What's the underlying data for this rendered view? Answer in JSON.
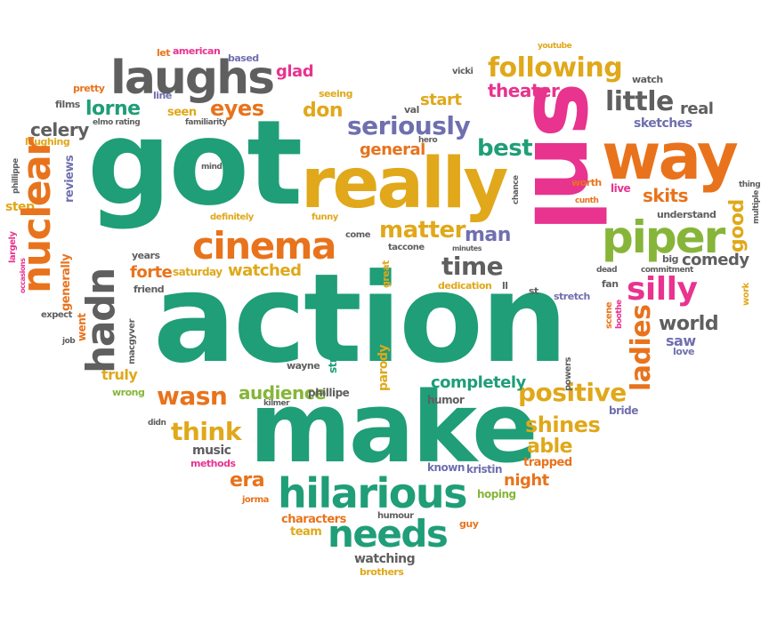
{
  "colors": {
    "green": "#1f9e78",
    "orange": "#e8731c",
    "pink": "#e8338f",
    "gold": "#e0a81a",
    "gray": "#5f5f5f",
    "purple": "#6f6fb0",
    "lime": "#86b53a"
  },
  "words": {
    "action": "action",
    "got": "got",
    "make": "make",
    "snl": "snl",
    "really": "really",
    "way": "way",
    "laughs": "laughs",
    "cinema": "cinema",
    "piper": "piper",
    "hilarious": "hilarious",
    "nuclear": "nuclear",
    "following": "following",
    "hadn": "hadn",
    "needs": "needs",
    "seriously": "seriously",
    "silly": "silly",
    "little": "little",
    "positive": "positive",
    "ladies": "ladies",
    "theater": "theater",
    "lorne": "lorne",
    "eyes": "eyes",
    "celery": "celery",
    "don": "don",
    "best": "best",
    "matter": "matter",
    "time": "time",
    "wasn": "wasn",
    "think": "think",
    "shines": "shines",
    "able": "able",
    "man": "man",
    "world": "world",
    "good": "good",
    "skits": "skits",
    "comedy": "comedy",
    "watched": "watched",
    "forte": "forte",
    "era": "era",
    "night": "night",
    "completely": "completely",
    "audience": "audience",
    "parody": "parody",
    "watching": "watching",
    "real": "real",
    "general": "general",
    "start": "start",
    "glad": "glad",
    "saw": "saw",
    "sketches": "sketches",
    "went": "went",
    "generally": "generally",
    "reviews": "reviews",
    "truly": "truly",
    "music": "music",
    "characters": "characters",
    "team": "team",
    "brothers": "brothers",
    "trapped": "trapped",
    "known": "known",
    "kristin": "kristin",
    "hoping": "hoping",
    "humor": "humor",
    "bride": "bride",
    "saturday": "saturday",
    "friend": "friend",
    "years": "years",
    "step": "step",
    "largely": "largely",
    "laughing": "laughing",
    "phillippe": "phillippe",
    "films": "films",
    "pretty": "pretty",
    "line": "line",
    "elmo_rating": "elmo rating",
    "familiarity": "familiarity",
    "seen": "seen",
    "mind": "mind",
    "definitely": "definitely",
    "funny": "funny",
    "come": "come",
    "taccone": "taccone",
    "minutes": "minutes",
    "great": "great",
    "dedication": "dedication",
    "ll": "ll",
    "st": "st",
    "stretch": "stretch",
    "val": "val",
    "hero": "hero",
    "vicki": "vicki",
    "youtube": "youtube",
    "watch": "watch",
    "let": "let",
    "american": "american",
    "based": "based",
    "seeing": "seeing",
    "worth": "worth",
    "live": "live",
    "cunth": "cunth",
    "chance": "chance",
    "understand": "understand",
    "big": "big",
    "commitment": "commitment",
    "dead": "dead",
    "fan": "fan",
    "powers": "powers",
    "scene": "scene",
    "boothe": "boothe",
    "love": "love",
    "work": "work",
    "thing": "thing",
    "multiple": "multiple",
    "macgyver": "macgyver",
    "wayne": "wayne",
    "straight": "straight",
    "wrong": "wrong",
    "didn": "didn",
    "kilmer": "kilmer",
    "phillipe": "phillipe",
    "expect": "expect",
    "job": "job",
    "occasions": "occasions",
    "methods": "methods",
    "jorma": "jorma",
    "humour": "humour",
    "guy": "guy"
  }
}
